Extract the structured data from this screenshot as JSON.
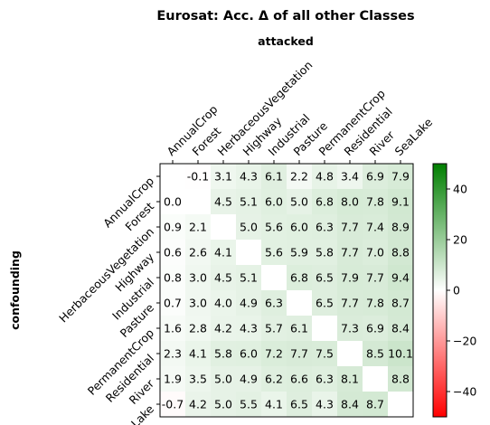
{
  "chart_data": {
    "type": "heatmap",
    "title": "Eurosat: Acc. Δ of all other Classes",
    "xlabel": "attacked",
    "ylabel": "confounding",
    "x_categories": [
      "AnnualCrop",
      "Forest",
      "HerbaceousVegetation",
      "Highway",
      "Industrial",
      "Pasture",
      "PermanentCrop",
      "Residential",
      "River",
      "SeaLake"
    ],
    "y_categories": [
      "AnnualCrop",
      "Forest",
      "HerbaceousVegetation",
      "Highway",
      "Industrial",
      "Pasture",
      "PermanentCrop",
      "Residential",
      "River",
      "SeaLake"
    ],
    "values": [
      [
        null,
        -0.1,
        3.1,
        4.3,
        6.1,
        2.2,
        4.8,
        3.4,
        6.9,
        7.9
      ],
      [
        0.0,
        null,
        4.5,
        5.1,
        6.0,
        5.0,
        6.8,
        8.0,
        7.8,
        9.1
      ],
      [
        0.9,
        2.1,
        null,
        5.0,
        5.6,
        6.0,
        6.3,
        7.7,
        7.4,
        8.9
      ],
      [
        0.6,
        2.6,
        4.1,
        null,
        5.6,
        5.9,
        5.8,
        7.7,
        7.0,
        8.8
      ],
      [
        0.8,
        3.0,
        4.5,
        5.1,
        null,
        6.8,
        6.5,
        7.9,
        7.7,
        9.4
      ],
      [
        0.7,
        3.0,
        4.0,
        4.9,
        6.3,
        null,
        6.5,
        7.7,
        7.8,
        8.7
      ],
      [
        1.6,
        2.8,
        4.2,
        4.3,
        5.7,
        6.1,
        null,
        7.3,
        6.9,
        8.4
      ],
      [
        2.3,
        4.1,
        5.8,
        6.0,
        7.2,
        7.7,
        7.5,
        null,
        8.5,
        10.1
      ],
      [
        1.9,
        3.5,
        5.0,
        4.9,
        6.2,
        6.6,
        6.3,
        8.1,
        null,
        8.8
      ],
      [
        -0.7,
        4.2,
        5.0,
        5.5,
        4.1,
        6.5,
        4.3,
        8.4,
        8.7,
        null
      ]
    ],
    "colorbar": {
      "min": -50,
      "max": 50,
      "ticks": [
        -40,
        -20,
        0,
        20,
        40
      ],
      "low_color": "#ff0000",
      "mid_color": "#ffffff",
      "high_color": "#007f00"
    },
    "grid": false
  }
}
